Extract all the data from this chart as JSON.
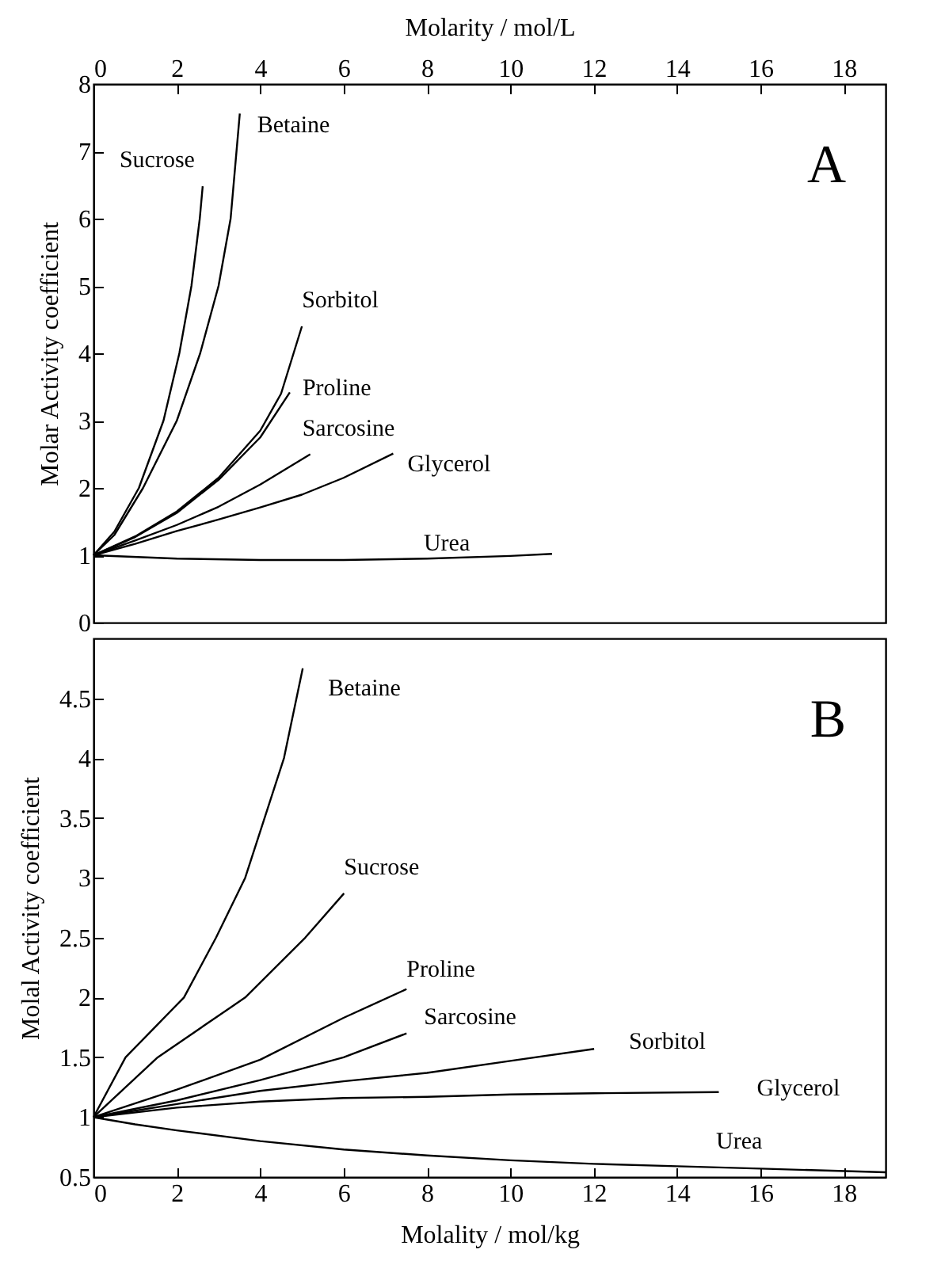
{
  "chart_data": [
    {
      "type": "line",
      "xlabel": "Molarity / mol/L",
      "ylabel": "Molar Activity coefficient",
      "xlim": [
        0,
        19
      ],
      "xticks": [
        0,
        2,
        4,
        6,
        8,
        10,
        12,
        14,
        16,
        18
      ],
      "ylim": [
        0,
        8
      ],
      "yticks": [
        0,
        1,
        2,
        3,
        4,
        5,
        6,
        7,
        8
      ],
      "annotations": [
        "A"
      ],
      "marker": "none",
      "line_style": "solid",
      "grid": false,
      "legend": false,
      "series": [
        {
          "name": "Sucrose",
          "color": "#000000",
          "x": [
            0,
            0.5,
            1.09,
            1.68,
            2.06,
            2.35,
            2.55,
            2.62
          ],
          "values": [
            1,
            1.35,
            2,
            3,
            4,
            5,
            6,
            6.48
          ]
        },
        {
          "name": "Betaine",
          "color": "#000000",
          "x": [
            0,
            0.5,
            1.19,
            2,
            2.56,
            3.0,
            3.29,
            3.51
          ],
          "values": [
            1,
            1.3,
            2,
            3,
            4,
            5,
            6,
            7.56
          ]
        },
        {
          "name": "Sorbitol",
          "color": "#000000",
          "x": [
            0,
            1,
            2,
            3,
            4,
            4.5,
            5
          ],
          "values": [
            1,
            1.28,
            1.65,
            2.15,
            2.85,
            3.4,
            4.4
          ]
        },
        {
          "name": "Proline",
          "color": "#000000",
          "x": [
            0,
            1,
            2,
            3,
            4,
            4.71
          ],
          "values": [
            1,
            1.27,
            1.63,
            2.12,
            2.75,
            3.42
          ]
        },
        {
          "name": "Sarcosine",
          "color": "#000000",
          "x": [
            0,
            1,
            2,
            3,
            4,
            5.2
          ],
          "values": [
            1,
            1.22,
            1.45,
            1.72,
            2.05,
            2.5
          ]
        },
        {
          "name": "Glycerol",
          "color": "#000000",
          "x": [
            0,
            1,
            2,
            3,
            4,
            5,
            6,
            7.19
          ],
          "values": [
            1,
            1.17,
            1.36,
            1.53,
            1.71,
            1.9,
            2.15,
            2.51
          ]
        },
        {
          "name": "Urea",
          "color": "#000000",
          "x": [
            0,
            2,
            4,
            6,
            8,
            10,
            11
          ],
          "values": [
            1,
            0.95,
            0.93,
            0.93,
            0.95,
            0.99,
            1.02
          ]
        }
      ]
    },
    {
      "type": "line",
      "xlabel": "Molality / mol/kg",
      "ylabel": "Molal Activity coefficient",
      "xlim": [
        0,
        19
      ],
      "xticks": [
        0,
        2,
        4,
        6,
        8,
        10,
        12,
        14,
        16,
        18
      ],
      "ylim": [
        0.5,
        5
      ],
      "yticks": [
        0.5,
        1,
        1.5,
        2,
        2.5,
        3,
        3.5,
        4,
        4.5
      ],
      "annotations": [
        "B"
      ],
      "marker": "none",
      "line_style": "solid",
      "grid": false,
      "legend": false,
      "series": [
        {
          "name": "Betaine",
          "color": "#000000",
          "x": [
            0,
            0.77,
            2.17,
            2.94,
            3.64,
            4.57,
            5.02
          ],
          "values": [
            1,
            1.5,
            2,
            2.5,
            3,
            4,
            4.75
          ]
        },
        {
          "name": "Sucrose",
          "color": "#000000",
          "x": [
            0,
            1.54,
            3.64,
            5.08,
            6.01
          ],
          "values": [
            1,
            1.5,
            2,
            2.5,
            2.87
          ]
        },
        {
          "name": "Proline",
          "color": "#000000",
          "x": [
            0,
            2,
            4,
            6,
            7.51
          ],
          "values": [
            1,
            1.23,
            1.48,
            1.83,
            2.07
          ]
        },
        {
          "name": "Sarcosine",
          "color": "#000000",
          "x": [
            0,
            2,
            4,
            6,
            7.51
          ],
          "values": [
            1,
            1.14,
            1.31,
            1.5,
            1.7
          ]
        },
        {
          "name": "Sorbitol",
          "color": "#000000",
          "x": [
            0,
            2,
            4,
            6,
            8,
            10,
            12.01
          ],
          "values": [
            1,
            1.11,
            1.22,
            1.3,
            1.37,
            1.47,
            1.57
          ]
        },
        {
          "name": "Glycerol",
          "color": "#000000",
          "x": [
            0,
            2,
            4,
            6,
            8,
            10,
            12,
            15
          ],
          "values": [
            1,
            1.08,
            1.13,
            1.16,
            1.17,
            1.19,
            1.2,
            1.21
          ]
        },
        {
          "name": "Urea",
          "color": "#000000",
          "x": [
            0,
            1,
            2,
            4,
            6,
            8,
            10,
            12,
            14,
            16,
            19
          ],
          "values": [
            1,
            0.94,
            0.89,
            0.8,
            0.73,
            0.68,
            0.64,
            0.61,
            0.59,
            0.57,
            0.54
          ]
        }
      ]
    }
  ]
}
